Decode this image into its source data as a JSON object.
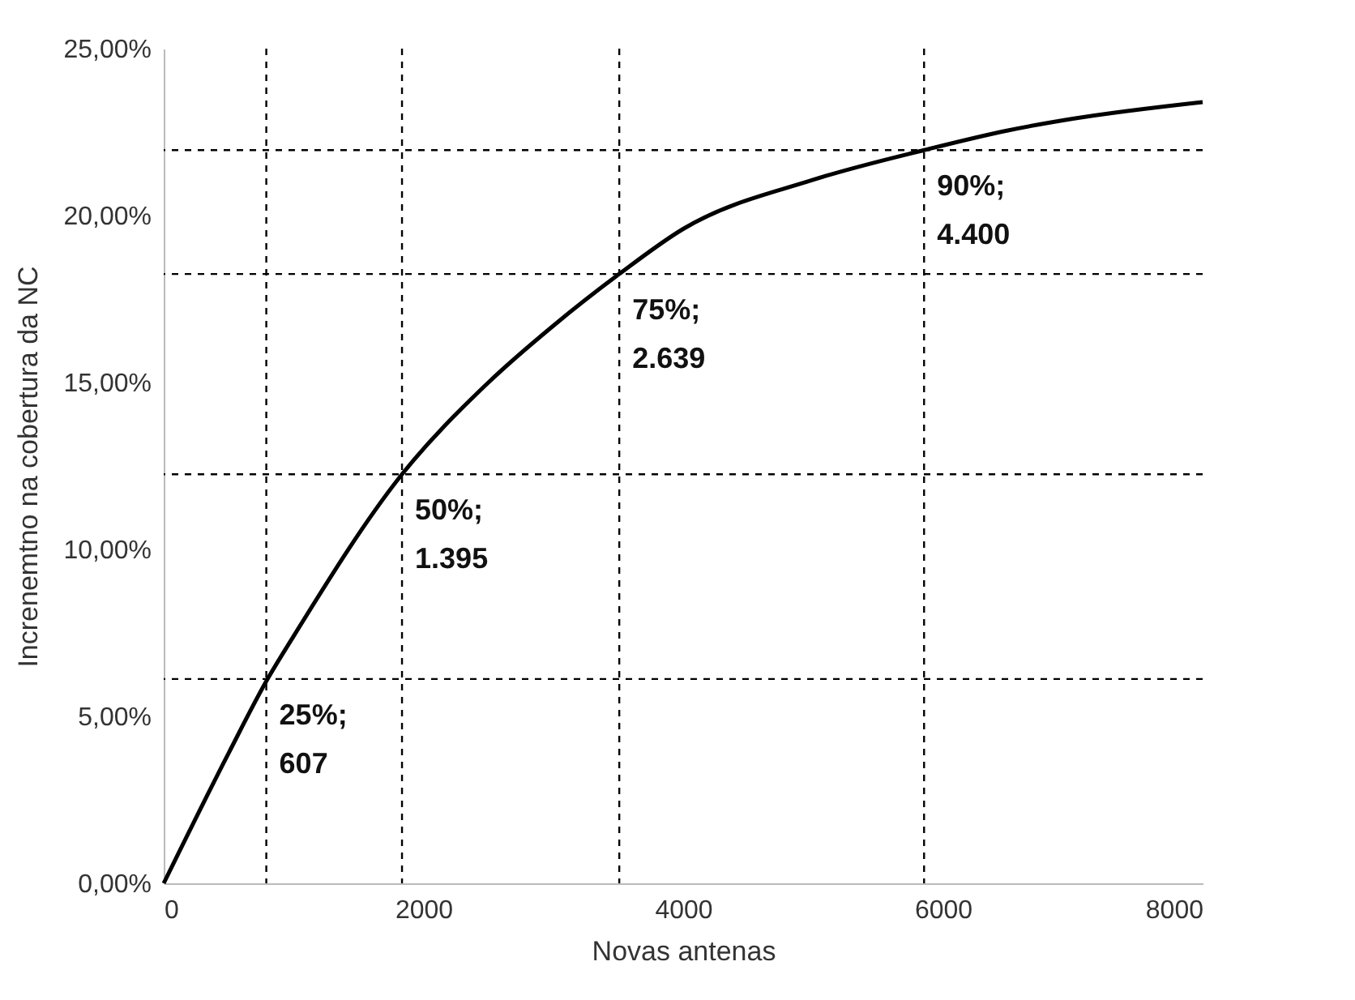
{
  "chart_data": {
    "type": "line",
    "xlabel": "Novas antenas",
    "ylabel": "Increnemtno na cobertura da NC",
    "x": [
      0,
      500,
      800,
      1000,
      1835,
      2500,
      3000,
      3508,
      4000,
      5000,
      5855,
      6500,
      7000,
      8000
    ],
    "series": [
      {
        "color": "#000000",
        "values": [
          0,
          3.9,
          6.12,
          7.4,
          12.25,
          15.0,
          16.7,
          18.25,
          19.6,
          21.07,
          21.96,
          22.55,
          22.9,
          23.4
        ]
      }
    ],
    "xlim": [
      0,
      8000
    ],
    "xticks": [
      0,
      2000,
      4000,
      6000,
      8000
    ],
    "ylim": [
      0,
      25
    ],
    "yticks": [
      {
        "value": 0,
        "label": "0,00%"
      },
      {
        "value": 5,
        "label": "5,00%"
      },
      {
        "value": 10,
        "label": "10,00%"
      },
      {
        "value": 15,
        "label": "15,00%"
      },
      {
        "value": 20,
        "label": "20,00%"
      },
      {
        "value": 25,
        "label": "25,00%"
      }
    ],
    "grid": false,
    "marker": "none",
    "line_style": "solid",
    "ref_lines": [
      {
        "axis": "x",
        "value": 790,
        "color": "#000000",
        "line_style": "dashed"
      },
      {
        "axis": "x",
        "value": 1835,
        "color": "#000000",
        "line_style": "dashed"
      },
      {
        "axis": "x",
        "value": 3508,
        "color": "#000000",
        "line_style": "dashed"
      },
      {
        "axis": "x",
        "value": 5855,
        "color": "#000000",
        "line_style": "dashed"
      },
      {
        "axis": "y",
        "value": 6.12,
        "color": "#000000",
        "line_style": "dashed"
      },
      {
        "axis": "y",
        "value": 12.25,
        "color": "#000000",
        "line_style": "dashed"
      },
      {
        "axis": "y",
        "value": 18.25,
        "color": "#000000",
        "line_style": "dashed"
      },
      {
        "axis": "y",
        "value": 21.96,
        "color": "#000000",
        "line_style": "dashed"
      }
    ],
    "annotations": [
      {
        "text": "25%; 607",
        "x": 790,
        "y": 6.12
      },
      {
        "text": "50%; 1.395",
        "x": 1835,
        "y": 12.25
      },
      {
        "text": "75%; 2.639",
        "x": 3508,
        "y": 18.25
      },
      {
        "text": "90%; 4.400",
        "x": 5855,
        "y": 21.96
      }
    ]
  }
}
